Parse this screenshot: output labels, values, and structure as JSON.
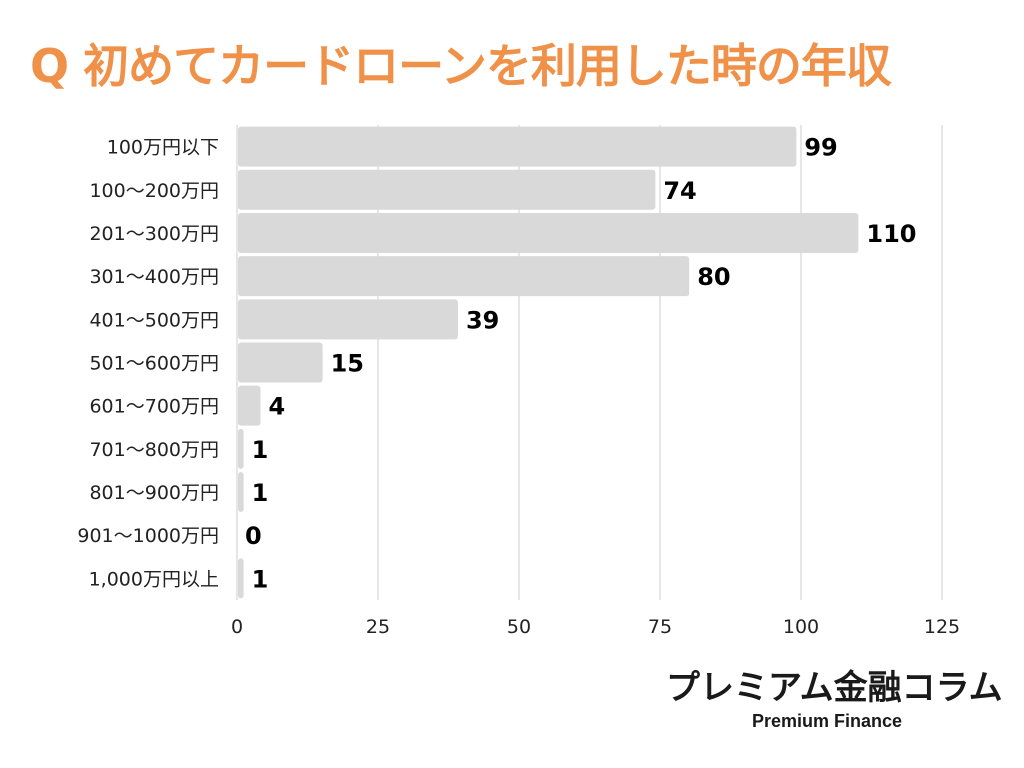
{
  "colors": {
    "title": "#f0914a",
    "bar": "#d9d9d9",
    "grid": "#cccccc",
    "axis_text": "#222222",
    "value_text": "#000000"
  },
  "chart_data": {
    "type": "bar",
    "orientation": "horizontal",
    "title": "Q 初めてカードローンを利用した時の年収",
    "categories": [
      "100万円以下",
      "100〜200万円",
      "201〜300万円",
      "301〜400万円",
      "401〜500万円",
      "501〜600万円",
      "601〜700万円",
      "701〜800万円",
      "801〜900万円",
      "901〜1000万円",
      "1,000万円以上"
    ],
    "values": [
      99,
      74,
      110,
      80,
      39,
      15,
      4,
      1,
      1,
      0,
      1
    ],
    "xlim": [
      0,
      125
    ],
    "xticks": [
      0,
      25,
      50,
      75,
      100,
      125
    ],
    "xlabel": "",
    "ylabel": "",
    "grid": true,
    "legend": "none",
    "data_labels": true
  },
  "branding": {
    "name": "プレミアム金融コラム",
    "subtitle": "Premium Finance"
  }
}
